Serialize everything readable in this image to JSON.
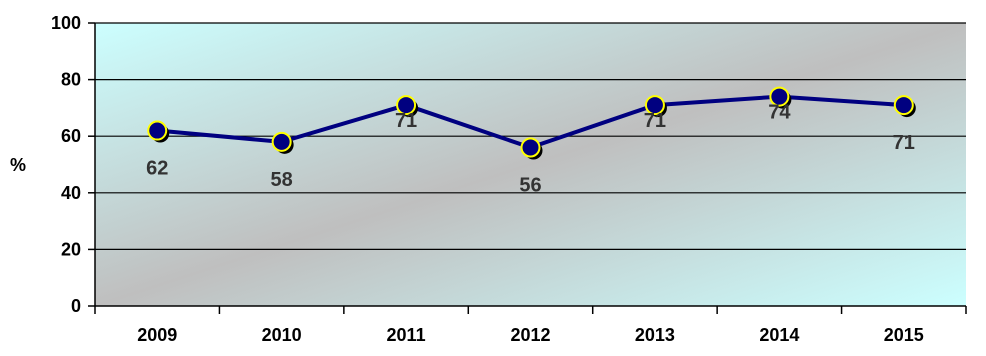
{
  "chart_data": {
    "type": "line",
    "title": "",
    "xlabel": "",
    "ylabel": "%",
    "ylim": [
      0,
      100
    ],
    "yticks": [
      0,
      20,
      40,
      60,
      80,
      100
    ],
    "grid": true,
    "legend": "none",
    "categories": [
      "2009",
      "2010",
      "2011",
      "2012",
      "2013",
      "2014",
      "2015"
    ],
    "series": [
      {
        "values": [
          62,
          58,
          71,
          56,
          71,
          74,
          71
        ],
        "data_labels": [
          "62",
          "58",
          "71",
          "56",
          "71",
          "74",
          "71"
        ],
        "line_color": "#000080",
        "marker_fill": "#000080",
        "marker_edge": "#ffff00"
      }
    ],
    "plot_gradient": [
      "#ccffff",
      "#bfbfbf",
      "#ccffff"
    ]
  }
}
